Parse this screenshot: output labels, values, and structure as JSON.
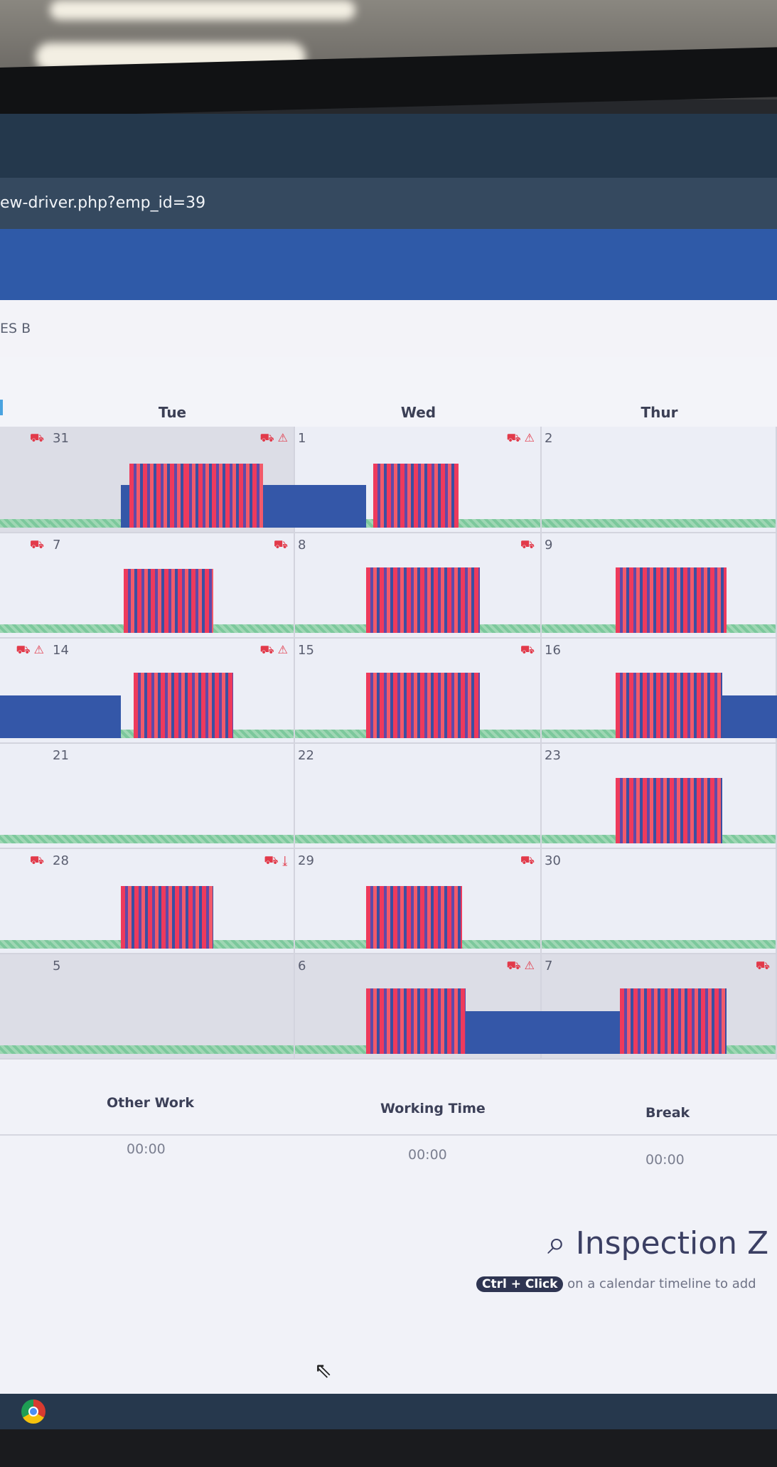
{
  "browser": {
    "url": "ew-driver.php?emp_id=39"
  },
  "breadcrumb": {
    "text": "ES B"
  },
  "calendar": {
    "day_headers": [
      "Tue",
      "Wed",
      "Thur"
    ],
    "weeks": [
      {
        "days": [
          "31",
          "1",
          "2"
        ]
      },
      {
        "days": [
          "7",
          "8",
          "9"
        ]
      },
      {
        "days": [
          "14",
          "15",
          "16"
        ]
      },
      {
        "days": [
          "21",
          "22",
          "23"
        ]
      },
      {
        "days": [
          "28",
          "29",
          "30"
        ]
      },
      {
        "days": [
          "5",
          "6",
          "7"
        ]
      }
    ],
    "icons": {
      "truck": "truck-icon",
      "warning": "warning-icon",
      "download": "download-icon"
    },
    "colors": {
      "drive": "#3457a8",
      "stripe_red": "#ee3a5c",
      "stripe_purple": "#5f4aa8",
      "rest": "#9fd7b4"
    }
  },
  "summary": {
    "columns": [
      {
        "label": "Other Work",
        "value": "00:00"
      },
      {
        "label": "Working Time",
        "value": "00:00"
      },
      {
        "label": "Break",
        "value": "00:00"
      }
    ]
  },
  "inspection": {
    "title": "Inspection Z",
    "kbd": "Ctrl + Click",
    "hint": "on a calendar timeline to add"
  }
}
